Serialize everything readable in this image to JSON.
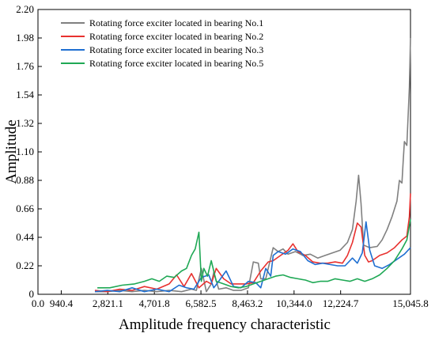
{
  "chart_data": {
    "type": "line",
    "title": "",
    "xlabel": "Amplitude frequency characteristic",
    "ylabel": "Amplitude",
    "xlim": [
      0,
      15045.8
    ],
    "ylim": [
      0,
      2.2
    ],
    "x_ticks": [
      0.0,
      940.4,
      2821.1,
      4701.8,
      6582.5,
      8463.2,
      10344.0,
      12224.7,
      15045.8
    ],
    "x_tick_labels": [
      "0.0",
      "940.4",
      "2,821.1",
      "4,701.8",
      "6,582.5",
      "8,463.2",
      "10,344.0",
      "12,224.7",
      "15,045.8"
    ],
    "y_ticks": [
      0.0,
      0.22,
      0.44,
      0.66,
      0.88,
      1.1,
      1.32,
      1.54,
      1.76,
      1.98,
      2.2
    ],
    "y_tick_labels": [
      "0",
      "0.22",
      "0.44",
      "0.66",
      "0.88",
      "1.10",
      "1.32",
      "1.54",
      "1.76",
      "1.98",
      "2.20"
    ],
    "legend_position": "top-left",
    "grid": false,
    "series": [
      {
        "name": "Rotating force exciter located in bearing No.1",
        "color": "#808080",
        "x": [
          2300,
          2800,
          3300,
          3800,
          4300,
          4800,
          5300,
          5800,
          6200,
          6400,
          6600,
          6800,
          7000,
          7100,
          7300,
          7600,
          7900,
          8200,
          8500,
          8700,
          8900,
          9000,
          9200,
          9500,
          9700,
          9900,
          10100,
          10400,
          10700,
          11000,
          11300,
          11600,
          11900,
          12200,
          12500,
          12700,
          12850,
          12950,
          13050,
          13150,
          13400,
          13700,
          13900,
          14100,
          14300,
          14500,
          14600,
          14700,
          14750,
          14800,
          14900,
          15000,
          15045.8
        ],
        "y": [
          0.02,
          0.02,
          0.03,
          0.02,
          0.03,
          0.02,
          0.03,
          0.02,
          0.04,
          0.03,
          0.2,
          0.02,
          0.08,
          0.17,
          0.04,
          0.05,
          0.03,
          0.03,
          0.05,
          0.25,
          0.24,
          0.12,
          0.12,
          0.36,
          0.33,
          0.35,
          0.31,
          0.33,
          0.3,
          0.31,
          0.28,
          0.3,
          0.32,
          0.34,
          0.4,
          0.5,
          0.72,
          0.92,
          0.7,
          0.38,
          0.36,
          0.37,
          0.42,
          0.5,
          0.6,
          0.72,
          0.88,
          0.86,
          1.02,
          1.18,
          1.15,
          1.6,
          1.98
        ]
      },
      {
        "name": "Rotating force exciter located in bearing No.2",
        "color": "#e8312f",
        "x": [
          2300,
          2800,
          3300,
          3800,
          4300,
          4800,
          5300,
          5600,
          5900,
          6200,
          6500,
          6800,
          7000,
          7200,
          7500,
          7800,
          8100,
          8400,
          8700,
          9000,
          9300,
          9500,
          9800,
          10100,
          10300,
          10500,
          10800,
          11100,
          11400,
          11700,
          12000,
          12300,
          12500,
          12700,
          12900,
          13050,
          13200,
          13350,
          13500,
          13800,
          14100,
          14400,
          14700,
          14900,
          15000,
          15045.8
        ],
        "y": [
          0.03,
          0.02,
          0.04,
          0.03,
          0.06,
          0.04,
          0.08,
          0.15,
          0.06,
          0.16,
          0.05,
          0.1,
          0.08,
          0.2,
          0.12,
          0.08,
          0.08,
          0.08,
          0.09,
          0.18,
          0.25,
          0.26,
          0.3,
          0.34,
          0.39,
          0.33,
          0.3,
          0.25,
          0.24,
          0.24,
          0.25,
          0.24,
          0.3,
          0.4,
          0.55,
          0.52,
          0.3,
          0.25,
          0.26,
          0.3,
          0.32,
          0.36,
          0.42,
          0.45,
          0.6,
          0.78
        ]
      },
      {
        "name": "Rotating force exciter located in bearing No.3",
        "color": "#1f6fd1",
        "x": [
          2300,
          2800,
          3300,
          3800,
          4300,
          4800,
          5300,
          5700,
          6000,
          6300,
          6600,
          6900,
          7100,
          7300,
          7600,
          7900,
          8200,
          8500,
          8800,
          9000,
          9200,
          9400,
          9500,
          9700,
          10000,
          10300,
          10600,
          10900,
          11200,
          11500,
          11800,
          12100,
          12400,
          12700,
          12900,
          13100,
          13250,
          13400,
          13600,
          13900,
          14200,
          14500,
          14800,
          15045.8
        ],
        "y": [
          0.02,
          0.03,
          0.02,
          0.05,
          0.02,
          0.04,
          0.02,
          0.07,
          0.05,
          0.04,
          0.13,
          0.15,
          0.05,
          0.1,
          0.18,
          0.06,
          0.05,
          0.1,
          0.09,
          0.05,
          0.2,
          0.14,
          0.3,
          0.33,
          0.31,
          0.35,
          0.33,
          0.26,
          0.23,
          0.24,
          0.23,
          0.22,
          0.22,
          0.28,
          0.24,
          0.32,
          0.56,
          0.34,
          0.22,
          0.2,
          0.23,
          0.27,
          0.31,
          0.36
        ]
      },
      {
        "name": "Rotating force exciter located in bearing No.5",
        "color": "#1fa855",
        "x": [
          2400,
          2900,
          3400,
          3900,
          4300,
          4600,
          4900,
          5200,
          5500,
          5800,
          6000,
          6200,
          6350,
          6500,
          6600,
          6700,
          6850,
          7000,
          7200,
          7500,
          7800,
          8100,
          8400,
          8700,
          9000,
          9300,
          9600,
          9900,
          10200,
          10500,
          10800,
          11100,
          11400,
          11700,
          12000,
          12300,
          12600,
          12900,
          13200,
          13500,
          13800,
          14100,
          14400,
          14700,
          14900,
          15045.8
        ],
        "y": [
          0.05,
          0.05,
          0.07,
          0.08,
          0.1,
          0.12,
          0.1,
          0.14,
          0.13,
          0.18,
          0.2,
          0.3,
          0.35,
          0.48,
          0.1,
          0.2,
          0.14,
          0.26,
          0.1,
          0.08,
          0.06,
          0.05,
          0.06,
          0.08,
          0.1,
          0.12,
          0.14,
          0.15,
          0.13,
          0.12,
          0.11,
          0.09,
          0.1,
          0.1,
          0.12,
          0.11,
          0.1,
          0.12,
          0.1,
          0.12,
          0.15,
          0.2,
          0.26,
          0.35,
          0.42,
          0.58
        ]
      }
    ]
  }
}
